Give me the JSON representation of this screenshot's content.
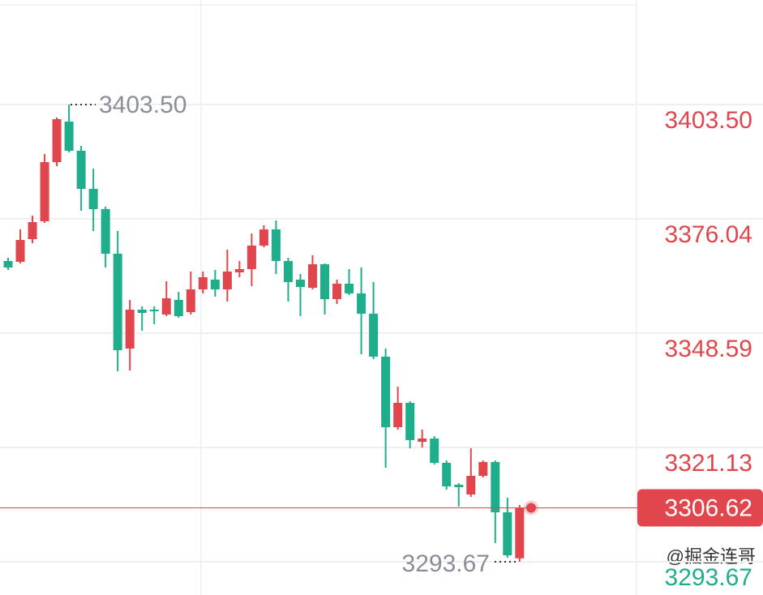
{
  "chart_data": {
    "type": "candlestick",
    "open": [
      3365.92,
      3365.72,
      3371.17,
      3375.46,
      3389.67,
      3399.41,
      3392.4,
      3383.25,
      3378.38,
      3367.67,
      3344.88,
      3354.23,
      3354.23,
      3353.06,
      3356.57,
      3353.65,
      3359.1,
      3361.44,
      3359.1,
      3363.19,
      3363.97,
      3369.62,
      3373.51,
      3365.92,
      3361.44,
      3359.49,
      3365.14,
      3356.76,
      3360.46,
      3358.13,
      3353.26,
      3342.94,
      3325.99,
      3331.84,
      3322.49,
      3323.27,
      3317.42,
      3312.17,
      3309.83,
      3314.31,
      3317.62,
      3305.55,
      3294.5
    ],
    "high": [
      3366.69,
      3373.51,
      3376.82,
      3391.62,
      3400.38,
      3403.5,
      3393.57,
      3388.12,
      3378.96,
      3373.12,
      3356.57,
      3355.01,
      3355.01,
      3361.05,
      3358.52,
      3363.38,
      3363.38,
      3363.77,
      3368.64,
      3365.92,
      3372.54,
      3374.48,
      3375.65,
      3366.69,
      3362.8,
      3367.28,
      3365.33,
      3361.44,
      3363.97,
      3364.36,
      3360.85,
      3344.88,
      3335.73,
      3332.23,
      3325.41,
      3323.85,
      3318.01,
      3312.56,
      3320.93,
      3318.01,
      3318.01,
      3309.05,
      3307.3
    ],
    "low": [
      3363.77,
      3365.33,
      3370.2,
      3375.07,
      3388.7,
      3392.01,
      3377.99,
      3373.12,
      3364.36,
      3339.43,
      3339.63,
      3349.17,
      3350.73,
      3352.67,
      3352.28,
      3353.06,
      3358.13,
      3357.35,
      3356.18,
      3362.02,
      3359.88,
      3369.23,
      3362.8,
      3356.18,
      3352.67,
      3359.1,
      3353.06,
      3355.59,
      3357.74,
      3343.52,
      3342.35,
      3316.26,
      3325.41,
      3320.93,
      3321.13,
      3317.04,
      3311.0,
      3306.91,
      3309.25,
      3313.92,
      3298.15,
      3294.64,
      3293.67
    ],
    "close": [
      3364.36,
      3370.98,
      3375.26,
      3389.67,
      3399.99,
      3392.4,
      3383.25,
      3378.38,
      3367.67,
      3344.49,
      3354.23,
      3353.45,
      3353.84,
      3356.96,
      3352.67,
      3359.1,
      3362.02,
      3359.1,
      3363.38,
      3363.97,
      3369.62,
      3373.51,
      3365.92,
      3360.85,
      3359.68,
      3365.14,
      3356.76,
      3360.46,
      3358.13,
      3353.26,
      3342.94,
      3325.99,
      3331.84,
      3322.88,
      3323.27,
      3317.42,
      3311.78,
      3311.58,
      3314.31,
      3317.62,
      3305.55,
      3295.22,
      3306.62
    ],
    "up_color": "#e0464c",
    "down_color": "#1fae8c",
    "ylim": [
      3285.68,
      3428.62
    ],
    "yticks": [
      {
        "value": 3403.5,
        "label": "3403.50"
      },
      {
        "value": 3376.04,
        "label": "3376.04"
      },
      {
        "value": 3348.59,
        "label": "3348.59"
      },
      {
        "value": 3321.13,
        "label": "3321.13"
      },
      {
        "value": 3293.67,
        "label": "3293.67"
      }
    ],
    "grid": true,
    "max_marker": {
      "value": 3403.5,
      "label": "3403.50"
    },
    "min_marker": {
      "value": 3293.67,
      "label": "3293.67"
    },
    "last_price": {
      "value": 3306.62,
      "label": "3306.62"
    },
    "watermark": "@掘金连哥"
  }
}
